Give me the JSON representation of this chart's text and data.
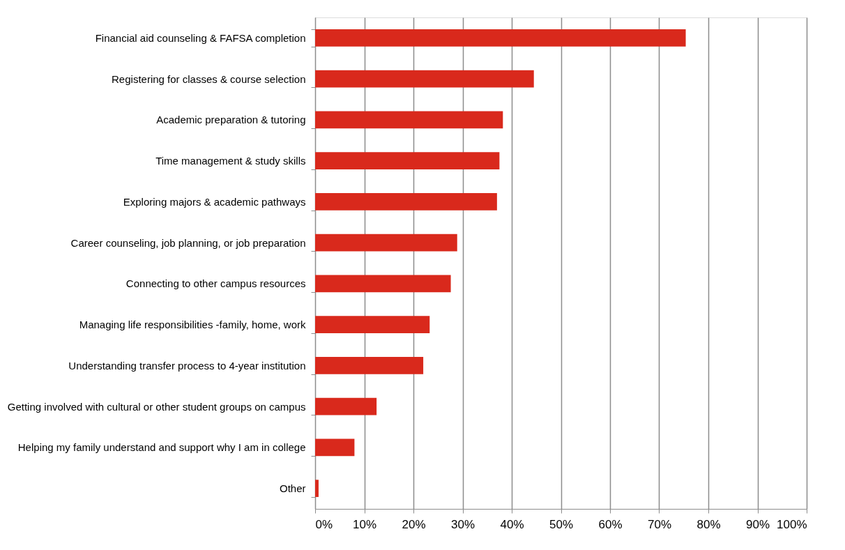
{
  "chart_data": {
    "type": "bar",
    "orientation": "horizontal",
    "categories": [
      "Financial aid counseling & FAFSA completion",
      "Registering for classes & course selection",
      "Academic preparation & tutoring ",
      "Time management & study skills",
      "Exploring majors & academic pathways",
      "Career counseling, job planning, or  job preparation",
      "Connecting to other campus resources",
      "Managing life responsibilities -family, home, work",
      "Understanding transfer process to 4-year institution ",
      "Getting involved with cultural or other student groups on campus",
      "Helping my family understand and support why I am in college",
      "Other"
    ],
    "values": [
      75.4,
      44.5,
      38.2,
      37.5,
      37.0,
      28.9,
      27.6,
      23.3,
      22.0,
      12.5,
      8.0,
      0.7
    ],
    "color": "#d9291c",
    "xlim": [
      0,
      100
    ],
    "xticks": [
      {
        "value": 0,
        "label": "0%"
      },
      {
        "value": 10,
        "label": "10%"
      },
      {
        "value": 20,
        "label": "20%"
      },
      {
        "value": 30,
        "label": "30%"
      },
      {
        "value": 40,
        "label": "40%"
      },
      {
        "value": 50,
        "label": "50%"
      },
      {
        "value": 60,
        "label": "60%"
      },
      {
        "value": 70,
        "label": "70%"
      },
      {
        "value": 80,
        "label": "80%"
      },
      {
        "value": 90,
        "label": "90%"
      },
      {
        "value": 100,
        "label": "100%"
      }
    ],
    "grid": "x"
  }
}
